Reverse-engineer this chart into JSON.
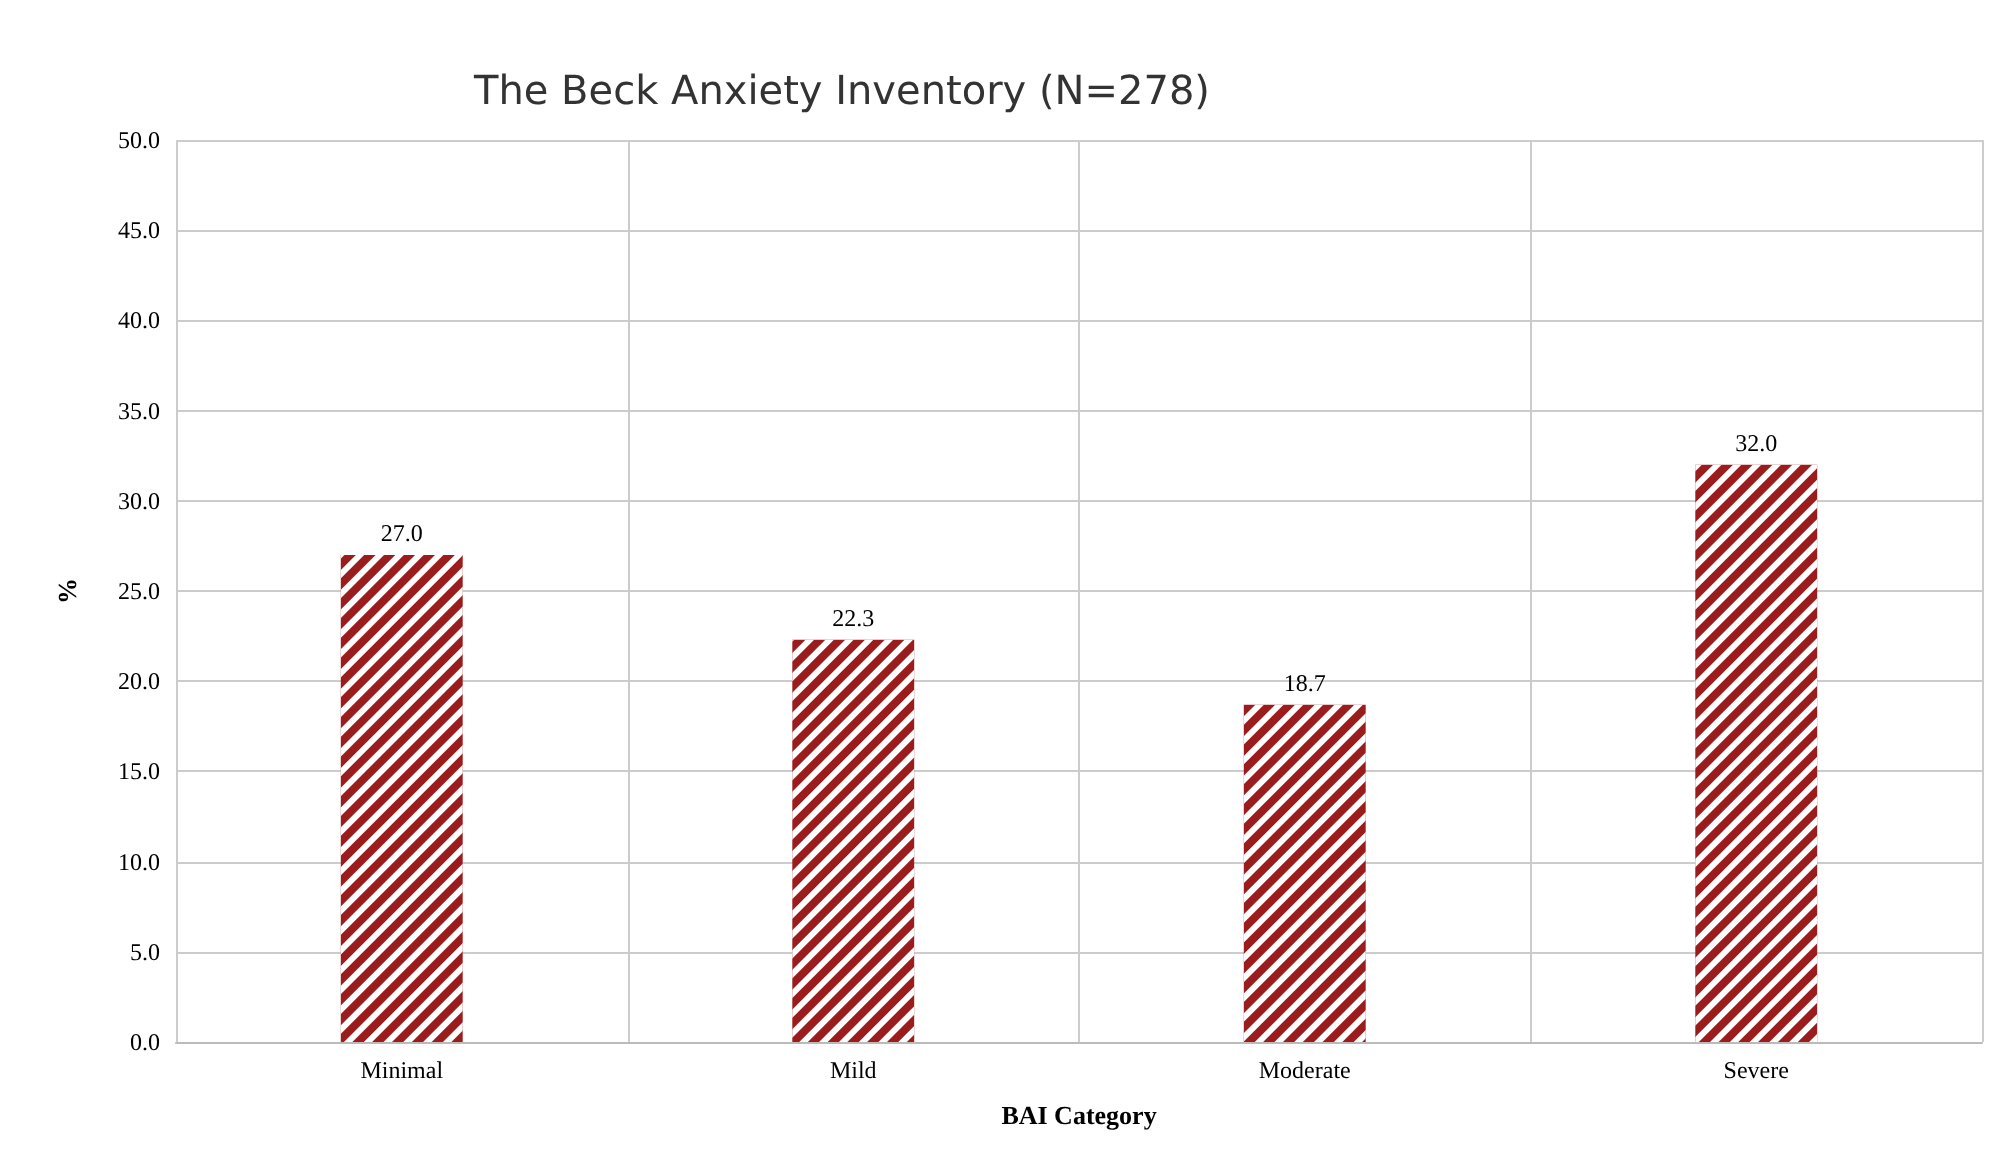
{
  "chart_data": {
    "type": "bar",
    "title": "The Beck Anxiety Inventory (N=278)",
    "xlabel": "BAI Category",
    "ylabel": "%",
    "categories": [
      "Minimal",
      "Mild",
      "Moderate",
      "Severe"
    ],
    "values": [
      27.0,
      22.3,
      18.7,
      32.0
    ],
    "color": "#9b1c1c",
    "value_labels": [
      "27.0",
      "22.3",
      "18.7",
      "32.0"
    ],
    "ylim": [
      0,
      50
    ],
    "yticks": [
      {
        "value": 0,
        "label": "0.0"
      },
      {
        "value": 5,
        "label": "5.0"
      },
      {
        "value": 10,
        "label": "10.0"
      },
      {
        "value": 15,
        "label": "15.0"
      },
      {
        "value": 20,
        "label": "20.0"
      },
      {
        "value": 25,
        "label": "25.0"
      },
      {
        "value": 30,
        "label": "30.0"
      },
      {
        "value": 35,
        "label": "35.0"
      },
      {
        "value": 40,
        "label": "40.0"
      },
      {
        "value": 45,
        "label": "45.0"
      },
      {
        "value": 50,
        "label": "50.0"
      }
    ],
    "grid": true
  }
}
